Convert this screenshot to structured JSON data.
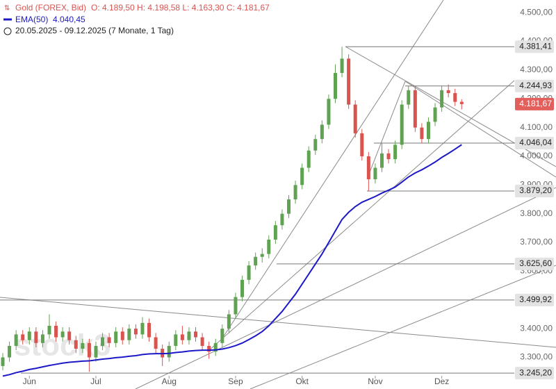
{
  "chart_data": {
    "type": "candlestick",
    "title": "Gold (FOREX, Bid)",
    "ohlc_text": "O: 4.189,50  H: 4.198,58  L: 4.163,30  C: 4.181,67",
    "period": "20.05.2025 - 09.12.2025  (7 Monate, 1 Tag)",
    "watermark": "stock3",
    "up_color": "#5fa352",
    "down_color": "#d9534f",
    "open": [
      3270,
      3300,
      3340,
      3380,
      3360,
      3390,
      3350,
      3380,
      3410,
      3370,
      3390,
      3360,
      3330,
      3350,
      3300,
      3340,
      3370,
      3350,
      3390,
      3360,
      3400,
      3380,
      3420,
      3370,
      3330,
      3300,
      3340,
      3380,
      3360,
      3390,
      3370,
      3340,
      3320,
      3350,
      3400,
      3450,
      3510,
      3570,
      3620,
      3650,
      3660,
      3710,
      3760,
      3800,
      3850,
      3900,
      3960,
      4020,
      4060,
      4110,
      4200,
      4290,
      4340,
      4180,
      4080,
      4000,
      3920,
      3960,
      4010,
      3990,
      4040,
      4180,
      4230,
      4100,
      4060,
      4120,
      4170,
      4230,
      4220,
      4189.5
    ],
    "high": [
      3315,
      3355,
      3395,
      3395,
      3405,
      3405,
      3395,
      3450,
      3425,
      3405,
      3405,
      3375,
      3365,
      3365,
      3355,
      3385,
      3385,
      3405,
      3405,
      3415,
      3415,
      3440,
      3435,
      3385,
      3345,
      3355,
      3395,
      3410,
      3405,
      3405,
      3385,
      3355,
      3365,
      3415,
      3465,
      3525,
      3585,
      3635,
      3665,
      3680,
      3725,
      3775,
      3815,
      3865,
      3915,
      3975,
      4035,
      4075,
      4125,
      4215,
      4320,
      4381.41,
      4355,
      4195,
      4095,
      4015,
      3975,
      4046.04,
      4025,
      4055,
      4195,
      4244.93,
      4245,
      4115,
      4135,
      4185,
      4244.93,
      4250,
      4235,
      4198.58
    ],
    "low": [
      3255,
      3285,
      3325,
      3345,
      3345,
      3335,
      3335,
      3365,
      3355,
      3355,
      3345,
      3315,
      3315,
      3250,
      3285,
      3325,
      3335,
      3335,
      3345,
      3345,
      3365,
      3365,
      3355,
      3315,
      3270,
      3285,
      3325,
      3345,
      3345,
      3355,
      3325,
      3295,
      3305,
      3335,
      3385,
      3435,
      3495,
      3555,
      3605,
      3630,
      3645,
      3695,
      3745,
      3785,
      3835,
      3885,
      3945,
      4005,
      4045,
      4095,
      4185,
      4275,
      4165,
      4065,
      3985,
      3879.2,
      3905,
      3945,
      3975,
      3975,
      4025,
      4165,
      4085,
      4045,
      4045,
      4105,
      4155,
      4205,
      4175,
      4163.3
    ],
    "close": [
      3300,
      3340,
      3380,
      3360,
      3390,
      3350,
      3380,
      3410,
      3370,
      3390,
      3360,
      3330,
      3350,
      3300,
      3340,
      3370,
      3350,
      3390,
      3360,
      3400,
      3380,
      3420,
      3370,
      3330,
      3300,
      3340,
      3380,
      3360,
      3390,
      3370,
      3340,
      3320,
      3350,
      3400,
      3450,
      3510,
      3570,
      3620,
      3650,
      3660,
      3710,
      3760,
      3800,
      3850,
      3900,
      3960,
      4020,
      4060,
      4110,
      4200,
      4290,
      4340,
      4180,
      4080,
      4000,
      3920,
      3960,
      4010,
      3990,
      4040,
      4180,
      4230,
      4100,
      4060,
      4120,
      4170,
      4230,
      4220,
      4189.5,
      4181.67
    ],
    "series": [
      {
        "name": "EMA(50)",
        "color": "#1c18c8",
        "value_label": "4.040,45",
        "values": [
          3235,
          3240,
          3247,
          3252,
          3258,
          3262,
          3267,
          3272,
          3276,
          3280,
          3283,
          3285,
          3287,
          3288,
          3291,
          3294,
          3296,
          3299,
          3301,
          3304,
          3306,
          3310,
          3312,
          3313,
          3313,
          3314,
          3317,
          3319,
          3322,
          3324,
          3325,
          3325,
          3326,
          3329,
          3334,
          3341,
          3350,
          3362,
          3375,
          3390,
          3410,
          3435,
          3460,
          3490,
          3520,
          3555,
          3590,
          3625,
          3660,
          3700,
          3740,
          3780,
          3805,
          3825,
          3840,
          3850,
          3860,
          3872,
          3882,
          3893,
          3910,
          3928,
          3942,
          3953,
          3966,
          3980,
          3996,
          4010,
          4025,
          4040.45
        ]
      }
    ],
    "xticks": [
      {
        "value": 4,
        "label": "Jun"
      },
      {
        "value": 14,
        "label": "Jul"
      },
      {
        "value": 25,
        "label": "Aug"
      },
      {
        "value": 35,
        "label": "Sep"
      },
      {
        "value": 45,
        "label": "Okt"
      },
      {
        "value": 56,
        "label": "Nov"
      },
      {
        "value": 66,
        "label": "Dez"
      }
    ],
    "ylim": [
      3190,
      4544
    ],
    "yticks": [
      {
        "value": 3300,
        "label": "3.300,00"
      },
      {
        "value": 3400,
        "label": "3.400,00"
      },
      {
        "value": 3500,
        "label": "3.500,00"
      },
      {
        "value": 3600,
        "label": "3.600,00"
      },
      {
        "value": 3700,
        "label": "3.700,00"
      },
      {
        "value": 3800,
        "label": "3.800,00"
      },
      {
        "value": 3900,
        "label": "3.900,00"
      },
      {
        "value": 4000,
        "label": "4.000,00"
      },
      {
        "value": 4100,
        "label": "4.100,00"
      },
      {
        "value": 4200,
        "label": "4.200,00"
      },
      {
        "value": 4300,
        "label": "4.300,00"
      },
      {
        "value": 4400,
        "label": "4.400,00"
      },
      {
        "value": 4500,
        "label": "4.500,00"
      }
    ],
    "levels": [
      {
        "value": 4381.41,
        "label": "4.381,41"
      },
      {
        "value": 4244.93,
        "label": "4.244,93"
      },
      {
        "value": 4046.04,
        "label": "4.046,04"
      },
      {
        "value": 3879.2,
        "label": "3.879,20"
      },
      {
        "value": 3625.6,
        "label": "3.625,60"
      },
      {
        "value": 3499.92,
        "label": "3.499,92"
      },
      {
        "value": 3245.2,
        "label": "3.245,20"
      }
    ],
    "last_price": {
      "value": 4181.67,
      "label": "4.181,67"
    }
  }
}
